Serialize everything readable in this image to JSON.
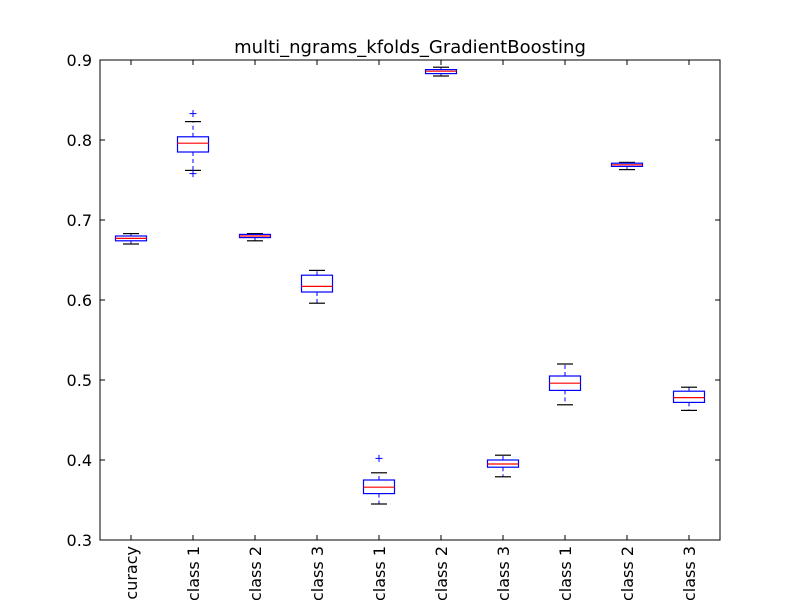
{
  "chart_data": {
    "type": "box",
    "title": "multi_ngrams_kfolds_GradientBoosting",
    "xlabel": "",
    "ylabel": "",
    "ylim": [
      0.3,
      0.9
    ],
    "yticks": [
      0.3,
      0.4,
      0.5,
      0.6,
      0.7,
      0.8,
      0.9
    ],
    "ytick_labels": [
      "0.3",
      "0.4",
      "0.5",
      "0.6",
      "0.7",
      "0.8",
      "0.9"
    ],
    "grid": false,
    "legend": "none",
    "categories": [
      "curacy",
      "class 1",
      "class 2",
      "class 3",
      "class 1",
      "class 2",
      "class 3",
      "class 1",
      "class 2",
      "class 3"
    ],
    "boxes": [
      {
        "whisker_low": 0.67,
        "q1": 0.674,
        "median": 0.677,
        "q3": 0.68,
        "whisker_high": 0.683,
        "outliers": []
      },
      {
        "whisker_low": 0.762,
        "q1": 0.785,
        "median": 0.796,
        "q3": 0.804,
        "whisker_high": 0.823,
        "outliers": [
          0.833,
          0.758
        ]
      },
      {
        "whisker_low": 0.674,
        "q1": 0.678,
        "median": 0.68,
        "q3": 0.682,
        "whisker_high": 0.683,
        "outliers": []
      },
      {
        "whisker_low": 0.596,
        "q1": 0.61,
        "median": 0.617,
        "q3": 0.631,
        "whisker_high": 0.637,
        "outliers": []
      },
      {
        "whisker_low": 0.345,
        "q1": 0.358,
        "median": 0.366,
        "q3": 0.375,
        "whisker_high": 0.384,
        "outliers": [
          0.402
        ]
      },
      {
        "whisker_low": 0.88,
        "q1": 0.883,
        "median": 0.886,
        "q3": 0.888,
        "whisker_high": 0.891,
        "outliers": []
      },
      {
        "whisker_low": 0.379,
        "q1": 0.391,
        "median": 0.395,
        "q3": 0.4,
        "whisker_high": 0.406,
        "outliers": []
      },
      {
        "whisker_low": 0.469,
        "q1": 0.487,
        "median": 0.496,
        "q3": 0.505,
        "whisker_high": 0.52,
        "outliers": []
      },
      {
        "whisker_low": 0.763,
        "q1": 0.767,
        "median": 0.769,
        "q3": 0.771,
        "whisker_high": 0.772,
        "outliers": []
      },
      {
        "whisker_low": 0.462,
        "q1": 0.472,
        "median": 0.478,
        "q3": 0.486,
        "whisker_high": 0.491,
        "outliers": []
      }
    ],
    "colors": {
      "box": "#0000ff",
      "median": "#ff0000",
      "whisker_cap": "#000000",
      "outlier": "#0000ff",
      "axes": "#000000",
      "background": "#ffffff"
    }
  }
}
